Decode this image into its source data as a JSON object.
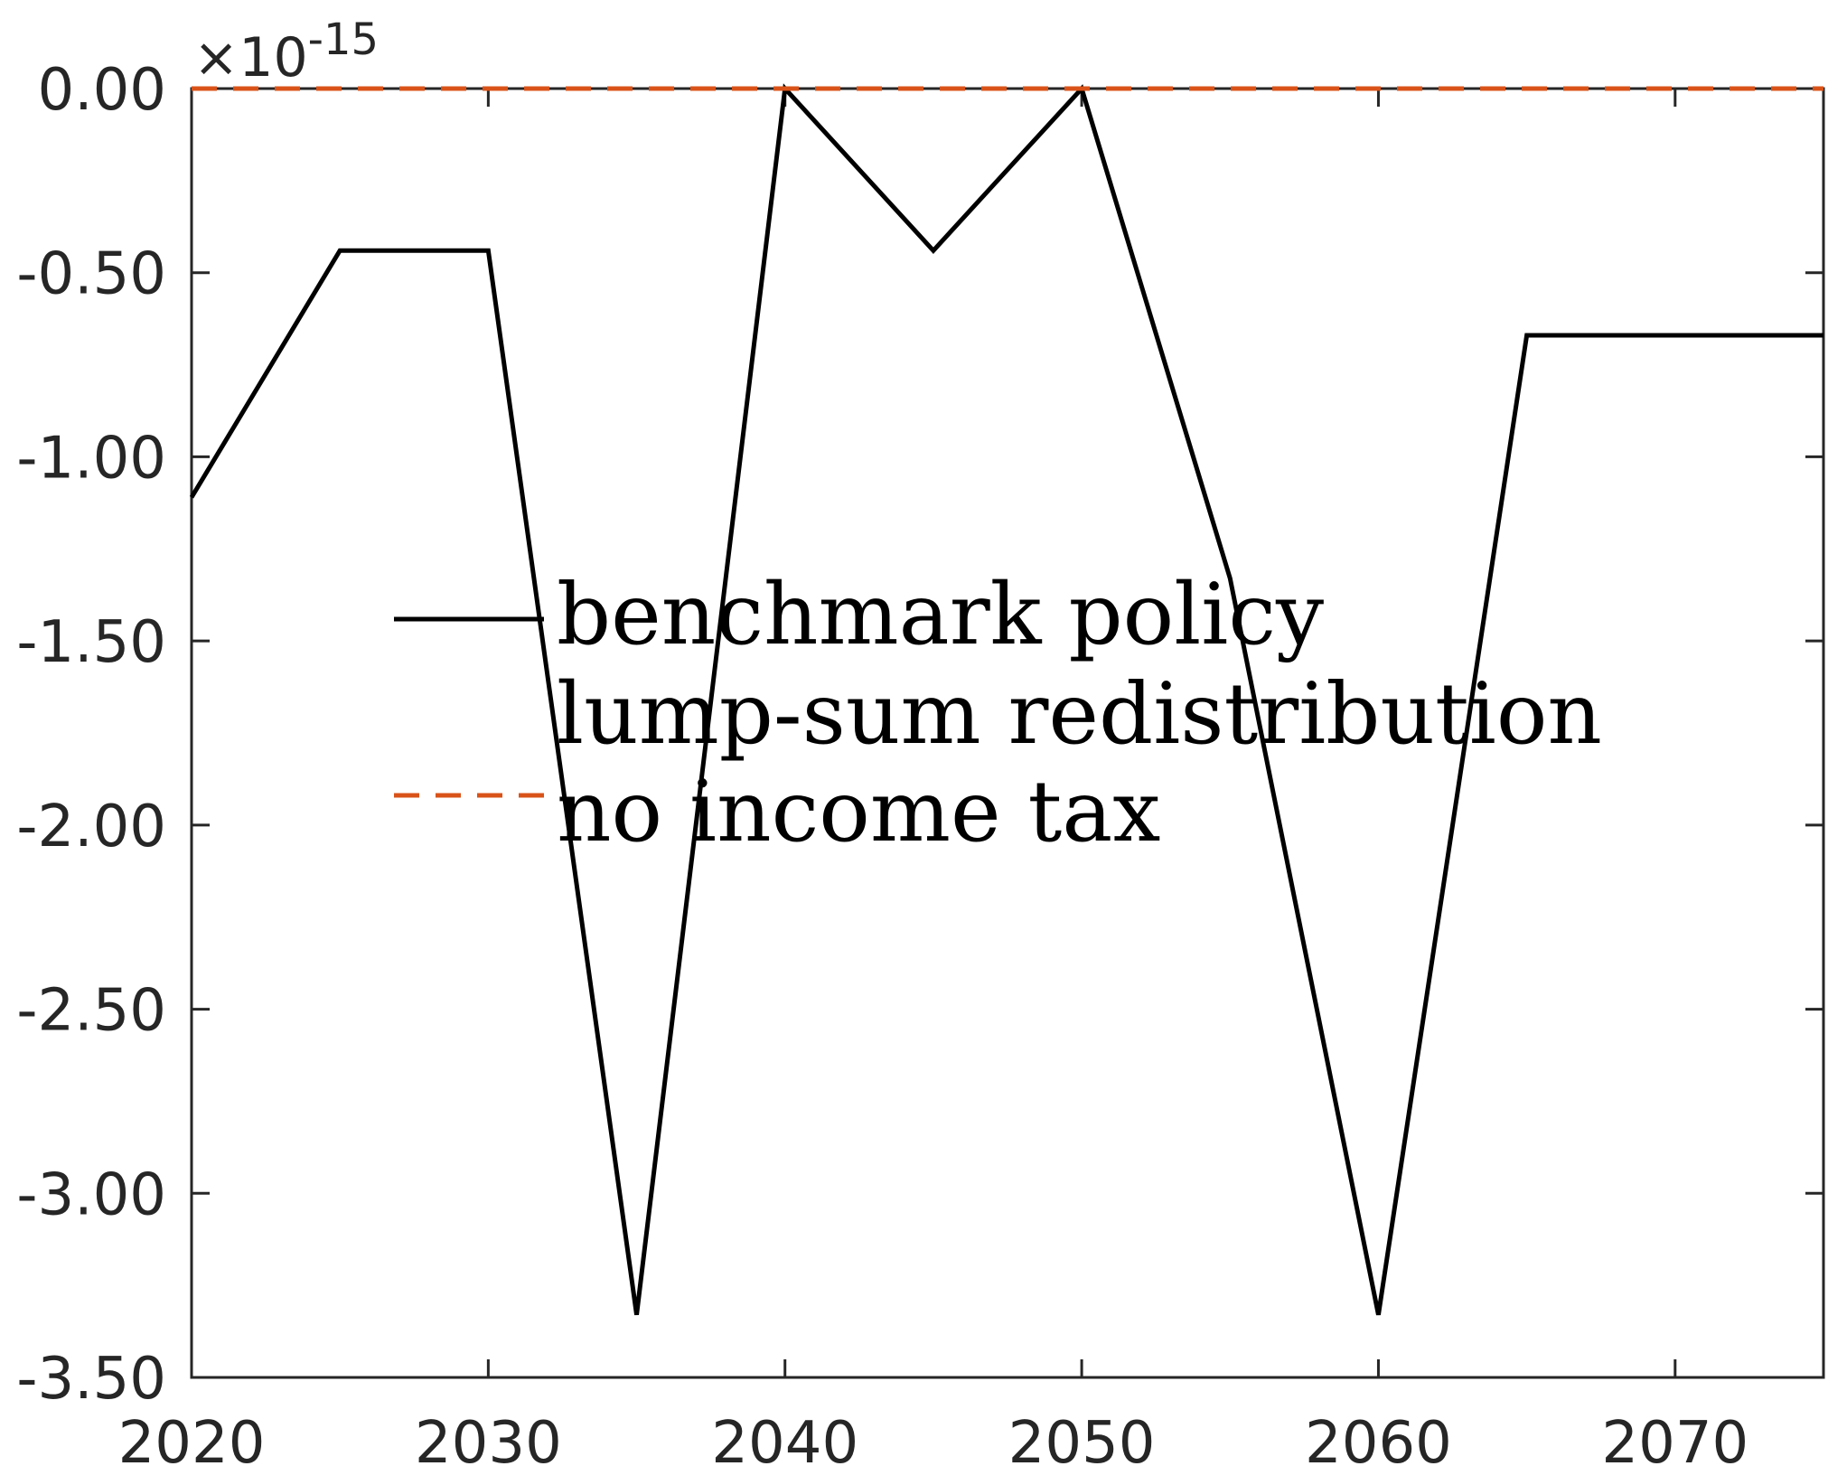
{
  "chart_data": {
    "type": "line",
    "title": "",
    "xlabel": "",
    "ylabel": "",
    "exponent": {
      "multiplier": "×10",
      "power": "-15"
    },
    "xlim": [
      2020,
      2075
    ],
    "ylim": [
      -3.5,
      0.0
    ],
    "xticks": [
      2020,
      2030,
      2040,
      2050,
      2060,
      2070
    ],
    "xtick_labels": [
      "2020",
      "2030",
      "2040",
      "2050",
      "2060",
      "2070"
    ],
    "yticks": [
      0.0,
      -0.5,
      -1.0,
      -1.5,
      -2.0,
      -2.5,
      -3.0,
      -3.5
    ],
    "ytick_labels": [
      "0.00",
      "-0.50",
      "-1.00",
      "-1.50",
      "-2.00",
      "-2.50",
      "-3.00",
      "-3.50"
    ],
    "grid": false,
    "legend_position": "center",
    "series": [
      {
        "name": "benchmark policy",
        "color": "#000000",
        "style": "solid",
        "x": [
          2020,
          2025,
          2030,
          2035,
          2040,
          2045,
          2050,
          2055,
          2060,
          2065,
          2070,
          2075
        ],
        "y": [
          -1.11,
          -0.44,
          -0.44,
          -3.33,
          0.0,
          -0.44,
          0.0,
          -1.33,
          -3.33,
          -0.67,
          -0.67,
          -0.67
        ]
      },
      {
        "name": "lump-sum redistribution",
        "color": "#000000",
        "style": "none",
        "x": [],
        "y": []
      },
      {
        "name": "no income tax",
        "color": "#D95319",
        "style": "dashed",
        "x": [
          2020,
          2025,
          2030,
          2035,
          2040,
          2045,
          2050,
          2055,
          2060,
          2065,
          2070,
          2075
        ],
        "y": [
          0,
          0,
          0,
          0,
          0,
          0,
          0,
          0,
          0,
          0,
          0,
          0
        ]
      }
    ]
  }
}
